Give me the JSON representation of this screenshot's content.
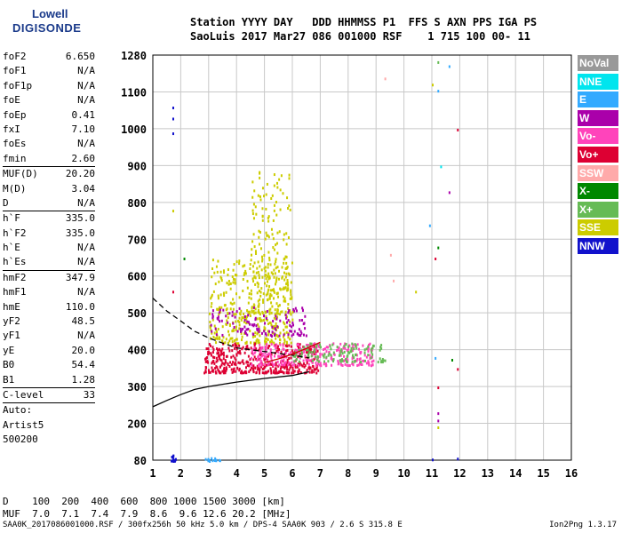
{
  "logo": {
    "line1": "Lowell",
    "line2": "DIGISONDE"
  },
  "header": {
    "line1": "Station YYYY DAY   DDD HHMMSS P1  FFS S AXN PPS IGA PS",
    "line2": "SaoLuis 2017 Mar27 086 001000 RSF    1 715 100 00- 11"
  },
  "params": [
    {
      "label": "foF2",
      "value": "6.650"
    },
    {
      "label": "foF1",
      "value": "N/A"
    },
    {
      "label": "foF1p",
      "value": "N/A"
    },
    {
      "label": "foE",
      "value": "N/A"
    },
    {
      "label": "foEp",
      "value": "0.41"
    },
    {
      "label": "fxI",
      "value": "7.10"
    },
    {
      "label": "foEs",
      "value": "N/A"
    },
    {
      "label": "fmin",
      "value": "2.60"
    },
    {
      "label": "MUF(D)",
      "value": "20.20",
      "sep": true
    },
    {
      "label": "M(D)",
      "value": "3.04"
    },
    {
      "label": "D",
      "value": "N/A"
    },
    {
      "label": "h`F",
      "value": "335.0",
      "sep": true
    },
    {
      "label": "h`F2",
      "value": "335.0"
    },
    {
      "label": "h`E",
      "value": "N/A"
    },
    {
      "label": "h`Es",
      "value": "N/A"
    },
    {
      "label": "hmF2",
      "value": "347.9",
      "sep": true
    },
    {
      "label": "hmF1",
      "value": "N/A"
    },
    {
      "label": "hmE",
      "value": "110.0"
    },
    {
      "label": "yF2",
      "value": "48.5"
    },
    {
      "label": "yF1",
      "value": "N/A"
    },
    {
      "label": "yE",
      "value": "20.0"
    },
    {
      "label": "B0",
      "value": "54.4"
    },
    {
      "label": "B1",
      "value": "1.28"
    },
    {
      "label": "C-level",
      "value": "33",
      "sep": true
    }
  ],
  "artist": {
    "line1": "Auto:",
    "line2": "Artist5",
    "line3": "500200"
  },
  "legend": [
    {
      "label": "NoVal",
      "color": "#999999"
    },
    {
      "label": "NNE",
      "color": "#00e5ee"
    },
    {
      "label": "E",
      "color": "#33aaff"
    },
    {
      "label": "W",
      "color": "#aa00aa"
    },
    {
      "label": "Vo-",
      "color": "#ff44bb"
    },
    {
      "label": "Vo+",
      "color": "#dd0033"
    },
    {
      "label": "SSW",
      "color": "#ffaaaa"
    },
    {
      "label": "X-",
      "color": "#008800"
    },
    {
      "label": "X+",
      "color": "#66bb55"
    },
    {
      "label": "SSE",
      "color": "#cccc00"
    },
    {
      "label": "NNW",
      "color": "#1111cc"
    }
  ],
  "mufTable": {
    "line1": "D    100  200  400  600  800 1000 1500 3000 [km]",
    "line2": "MUF  7.0  7.1  7.4  7.9  8.6  9.6 12.6 20.2 [MHz]"
  },
  "footer": {
    "left": "SAA0K_2017086001000.RSF / 300fx256h 50 kHz 5.0 km / DPS-4 SAA0K 903 / 2.6 S 315.8 E",
    "right": "Ion2Png 1.3.17"
  },
  "chart_data": {
    "type": "scatter",
    "title": "",
    "xlabel": "",
    "ylabel": "",
    "xlim": [
      1,
      16
    ],
    "ylim": [
      80,
      1280
    ],
    "xticks": [
      "1",
      "2",
      "3",
      "4",
      "5",
      "6",
      "7",
      "8",
      "9",
      "10",
      "11",
      "12",
      "13",
      "14",
      "15",
      "16"
    ],
    "yticks": [
      "80",
      "200",
      "300",
      "400",
      "500",
      "600",
      "700",
      "800",
      "900",
      "1000",
      "1100",
      "1280"
    ],
    "grid": true,
    "clusters": [
      {
        "name": "SSE",
        "x_range": [
          3.0,
          6.0
        ],
        "y_range": [
          420,
          650
        ]
      },
      {
        "name": "SSE",
        "x_range": [
          4.5,
          5.9
        ],
        "y_range": [
          500,
          900
        ]
      },
      {
        "name": "Vo+",
        "x_range": [
          2.8,
          6.9
        ],
        "y_range": [
          340,
          420
        ]
      },
      {
        "name": "Vo-",
        "x_range": [
          4.5,
          8.9
        ],
        "y_range": [
          360,
          420
        ]
      },
      {
        "name": "W",
        "x_range": [
          3.0,
          6.5
        ],
        "y_range": [
          440,
          520
        ]
      },
      {
        "name": "X+",
        "x_range": [
          6.0,
          9.3
        ],
        "y_range": [
          370,
          420
        ]
      },
      {
        "name": "NNW",
        "x_range": [
          1.6,
          1.8
        ],
        "y_range": [
          80,
          100
        ]
      },
      {
        "name": "E",
        "x_range": [
          2.6,
          3.4
        ],
        "y_range": [
          80,
          90
        ]
      }
    ],
    "trace_dashed": {
      "x": [
        1.0,
        1.5,
        2.0,
        2.5,
        3.0,
        3.5,
        4.0,
        5.0,
        6.0,
        6.6
      ],
      "y": [
        540,
        505,
        478,
        450,
        432,
        418,
        405,
        395,
        385,
        378
      ]
    },
    "trace_solid": {
      "x": [
        1.0,
        1.5,
        2.0,
        2.5,
        3.0,
        3.5,
        4.0,
        5.0,
        6.0,
        6.6
      ],
      "y": [
        245,
        262,
        278,
        292,
        300,
        306,
        312,
        322,
        330,
        340
      ]
    },
    "trace_red": {
      "x": [
        5.0,
        5.5,
        6.0,
        6.5,
        7.0
      ],
      "y": [
        365,
        375,
        388,
        403,
        420
      ]
    },
    "scattered_points": [
      {
        "x": 1.7,
        "y": 1060,
        "c": "NNW"
      },
      {
        "x": 1.7,
        "y": 1030,
        "c": "NNW"
      },
      {
        "x": 1.7,
        "y": 990,
        "c": "NNW"
      },
      {
        "x": 11.2,
        "y": 1250,
        "c": "X+"
      },
      {
        "x": 11.6,
        "y": 1230,
        "c": "E"
      },
      {
        "x": 11.2,
        "y": 1110,
        "c": "E"
      },
      {
        "x": 11.0,
        "y": 1140,
        "c": "SSE"
      },
      {
        "x": 11.9,
        "y": 1000,
        "c": "Vo+"
      },
      {
        "x": 11.3,
        "y": 900,
        "c": "NNE"
      },
      {
        "x": 11.6,
        "y": 830,
        "c": "W"
      },
      {
        "x": 11.2,
        "y": 680,
        "c": "X-"
      },
      {
        "x": 11.1,
        "y": 650,
        "c": "Vo+"
      },
      {
        "x": 10.9,
        "y": 740,
        "c": "E"
      },
      {
        "x": 9.3,
        "y": 1170,
        "c": "SSW"
      },
      {
        "x": 9.5,
        "y": 660,
        "c": "SSW"
      },
      {
        "x": 9.6,
        "y": 590,
        "c": "SSW"
      },
      {
        "x": 10.4,
        "y": 560,
        "c": "SSE"
      },
      {
        "x": 11.2,
        "y": 300,
        "c": "Vo+"
      },
      {
        "x": 11.2,
        "y": 230,
        "c": "W"
      },
      {
        "x": 11.2,
        "y": 210,
        "c": "W"
      },
      {
        "x": 11.2,
        "y": 190,
        "c": "SSE"
      },
      {
        "x": 11.1,
        "y": 380,
        "c": "E"
      },
      {
        "x": 11.7,
        "y": 375,
        "c": "X-"
      },
      {
        "x": 11.9,
        "y": 350,
        "c": "Vo+"
      },
      {
        "x": 11.9,
        "y": 88,
        "c": "NNW"
      },
      {
        "x": 11.0,
        "y": 85,
        "c": "NNW"
      },
      {
        "x": 1.7,
        "y": 560,
        "c": "Vo+"
      },
      {
        "x": 2.1,
        "y": 650,
        "c": "X-"
      },
      {
        "x": 1.7,
        "y": 780,
        "c": "SSE"
      }
    ]
  }
}
